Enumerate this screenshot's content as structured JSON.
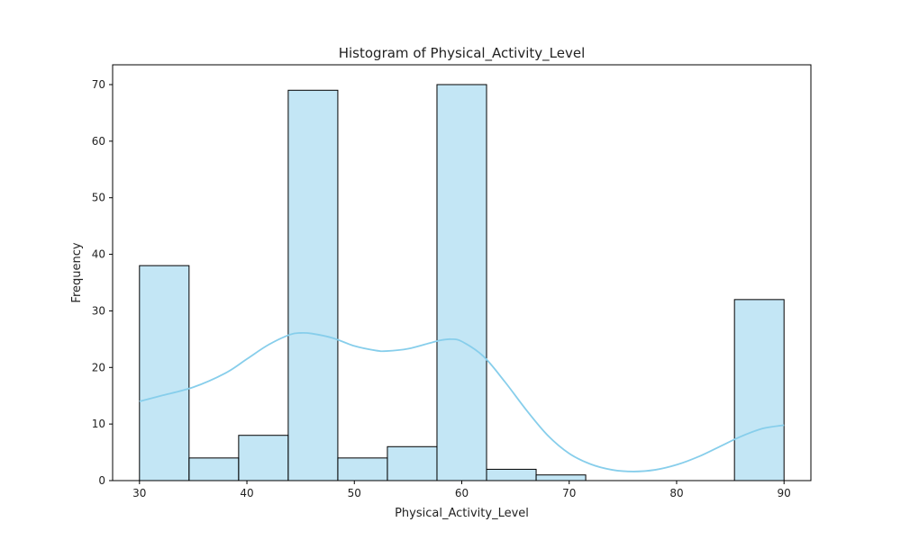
{
  "chart_data": {
    "type": "bar",
    "title": "Histogram of Physical_Activity_Level",
    "xlabel": "Physical_Activity_Level",
    "ylabel": "Frequency",
    "xlim": [
      27.5,
      92.5
    ],
    "ylim": [
      0,
      73.5
    ],
    "xticks": [
      30,
      40,
      50,
      60,
      70,
      80,
      90
    ],
    "yticks": [
      0,
      10,
      20,
      30,
      40,
      50,
      60,
      70
    ],
    "bins": [
      {
        "x0": 30.0,
        "x1": 34.615,
        "count": 38
      },
      {
        "x0": 34.615,
        "x1": 39.231,
        "count": 4
      },
      {
        "x0": 39.231,
        "x1": 43.846,
        "count": 8
      },
      {
        "x0": 43.846,
        "x1": 48.462,
        "count": 69
      },
      {
        "x0": 48.462,
        "x1": 53.077,
        "count": 4
      },
      {
        "x0": 53.077,
        "x1": 57.692,
        "count": 6
      },
      {
        "x0": 57.692,
        "x1": 62.308,
        "count": 70
      },
      {
        "x0": 62.308,
        "x1": 66.923,
        "count": 2
      },
      {
        "x0": 66.923,
        "x1": 71.538,
        "count": 1
      },
      {
        "x0": 71.538,
        "x1": 76.154,
        "count": 0
      },
      {
        "x0": 76.154,
        "x1": 80.769,
        "count": 0
      },
      {
        "x0": 80.769,
        "x1": 85.385,
        "count": 0
      },
      {
        "x0": 85.385,
        "x1": 90.0,
        "count": 32
      }
    ],
    "kde": {
      "x": [
        30,
        32,
        35,
        38,
        40,
        42,
        44,
        45,
        46,
        48,
        50,
        52,
        53,
        55,
        57,
        58,
        59,
        60,
        62,
        64,
        66,
        68,
        70,
        72,
        74,
        76,
        78,
        80,
        82,
        84,
        86,
        88,
        90
      ],
      "y": [
        14,
        15,
        16.5,
        19,
        21.5,
        24,
        25.8,
        26.1,
        26,
        25.2,
        23.8,
        23,
        22.9,
        23.3,
        24.3,
        24.8,
        25,
        24.6,
        22,
        17.5,
        12.5,
        8,
        4.8,
        2.9,
        1.9,
        1.6,
        1.9,
        2.8,
        4.2,
        6,
        7.8,
        9.2,
        9.8
      ]
    },
    "colors": {
      "bar_fill": "#87ceeb",
      "bar_fill_opacity": 0.5,
      "bar_edge": "#000000",
      "kde_line": "#87ceeb"
    },
    "grid": false,
    "legend": "none"
  }
}
